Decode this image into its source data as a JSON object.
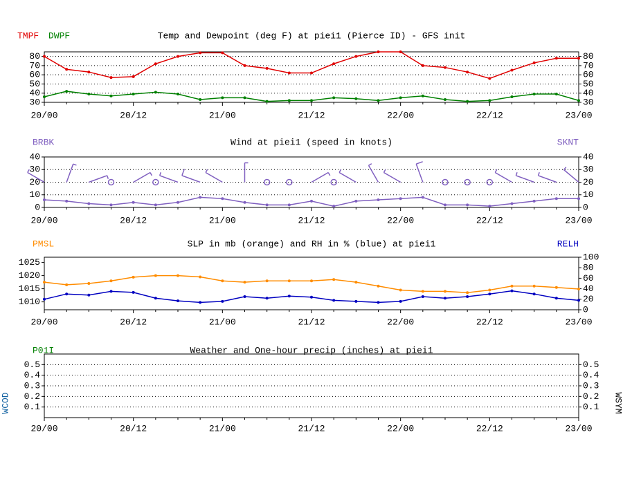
{
  "chart_data": [
    {
      "type": "line",
      "title": "Temp and Dewpoint (deg F) at piei1 (Pierce ID) - GFS init",
      "categories": [
        "20/00",
        null,
        null,
        null,
        "20/12",
        null,
        null,
        null,
        "21/00",
        null,
        null,
        null,
        "21/12",
        null,
        null,
        null,
        "22/00",
        null,
        null,
        null,
        "22/12",
        null,
        null,
        null,
        "23/00"
      ],
      "ylim": [
        30,
        85
      ],
      "yticks": [
        30,
        40,
        50,
        60,
        70,
        80
      ],
      "y2lim": [
        30,
        85
      ],
      "y2ticks": [
        30,
        40,
        50,
        60,
        70,
        80
      ],
      "grid": true,
      "series": [
        {
          "name": "TMPF",
          "color": "#e00000",
          "label_side": "left",
          "values": [
            80,
            66,
            63,
            57,
            58,
            72,
            80,
            84,
            84,
            70,
            67,
            62,
            62,
            72,
            80,
            85,
            85,
            70,
            68,
            63,
            56,
            65,
            73,
            78,
            78
          ]
        },
        {
          "name": "DWPF",
          "color": "#008000",
          "label_side": "left",
          "values": [
            36,
            42,
            39,
            37,
            39,
            41,
            39,
            33,
            35,
            35,
            31,
            32,
            32,
            35,
            34,
            32,
            35,
            37,
            33,
            31,
            32,
            36,
            39,
            39,
            32
          ]
        }
      ]
    },
    {
      "type": "line",
      "title": "Wind at  piei1 (speed in knots)",
      "categories": [
        "20/00",
        null,
        null,
        null,
        "20/12",
        null,
        null,
        null,
        "21/00",
        null,
        null,
        null,
        "21/12",
        null,
        null,
        null,
        "22/00",
        null,
        null,
        null,
        "22/12",
        null,
        null,
        null,
        "23/00"
      ],
      "ylim": [
        0,
        40
      ],
      "yticks": [
        0,
        10,
        20,
        30,
        40
      ],
      "y2lim": [
        0,
        40
      ],
      "y2ticks": [
        0,
        10,
        20,
        30,
        40
      ],
      "grid": true,
      "barbs": {
        "name": "BRBK",
        "color": "#8060c0",
        "directions": [
          300,
          20,
          70,
          0,
          60,
          300,
          290,
          290,
          300,
          0,
          60,
          60,
          60,
          50,
          300,
          330,
          300,
          340,
          60,
          270,
          340,
          300,
          290,
          290,
          310
        ]
      },
      "series": [
        {
          "name": "SKNT",
          "color": "#8060c0",
          "label_side": "right",
          "values": [
            6,
            5,
            3,
            2,
            4,
            2,
            4,
            8,
            7,
            4,
            2,
            2,
            5,
            1,
            5,
            6,
            7,
            8,
            2,
            2,
            1,
            3,
            5,
            7,
            7
          ]
        }
      ]
    },
    {
      "type": "line",
      "title": "SLP in mb (orange) and RH in % (blue) at  piei1",
      "categories": [
        "20/00",
        null,
        null,
        null,
        "20/12",
        null,
        null,
        null,
        "21/00",
        null,
        null,
        null,
        "21/12",
        null,
        null,
        null,
        "22/00",
        null,
        null,
        null,
        "22/12",
        null,
        null,
        null,
        "23/00"
      ],
      "ylim": [
        1007,
        1027
      ],
      "yticks": [
        1010,
        1015,
        1020,
        1025
      ],
      "y2lim": [
        0,
        100
      ],
      "y2ticks": [
        0,
        20,
        40,
        60,
        80,
        100
      ],
      "grid": false,
      "series": [
        {
          "name": "PMSL",
          "color": "#ff8c00",
          "label_side": "left",
          "values": [
            1017.5,
            1016.5,
            1017,
            1018,
            1019.4,
            1020,
            1020,
            1019.5,
            1018,
            1017.5,
            1018,
            1018,
            1018,
            1018.5,
            1017.5,
            1016,
            1014.5,
            1014,
            1014,
            1013.5,
            1014.5,
            1016,
            1016,
            1015.5,
            1014.9
          ]
        },
        {
          "name": "RELH",
          "color": "#0000c0",
          "label_side": "right",
          "axis": "y2",
          "values": [
            20,
            30,
            28,
            35,
            33,
            22,
            17,
            14,
            16,
            25,
            22,
            26,
            24,
            18,
            16,
            14,
            16,
            25,
            22,
            25,
            30,
            36,
            30,
            22,
            18
          ]
        }
      ]
    },
    {
      "type": "line",
      "title": "Weather and One-hour precip (inches) at  piei1",
      "categories": [
        "20/00",
        null,
        null,
        null,
        "20/12",
        null,
        null,
        null,
        "21/00",
        null,
        null,
        null,
        "21/12",
        null,
        null,
        null,
        "22/00",
        null,
        null,
        null,
        "22/12",
        null,
        null,
        null,
        "23/00"
      ],
      "ylim": [
        0,
        0.6
      ],
      "yticks": [
        0.1,
        0.2,
        0.3,
        0.4,
        0.5
      ],
      "y2lim": [
        0,
        0.6
      ],
      "y2ticks": [
        0.1,
        0.2,
        0.3,
        0.4,
        0.5
      ],
      "grid": true,
      "left_label": {
        "text": "P01I",
        "color": "#008000"
      },
      "side_labels": [
        {
          "text": "WCOD",
          "color": "#1060a0",
          "side": "left"
        },
        {
          "text": "WSYM",
          "color": "#000000",
          "side": "right"
        }
      ]
    }
  ]
}
